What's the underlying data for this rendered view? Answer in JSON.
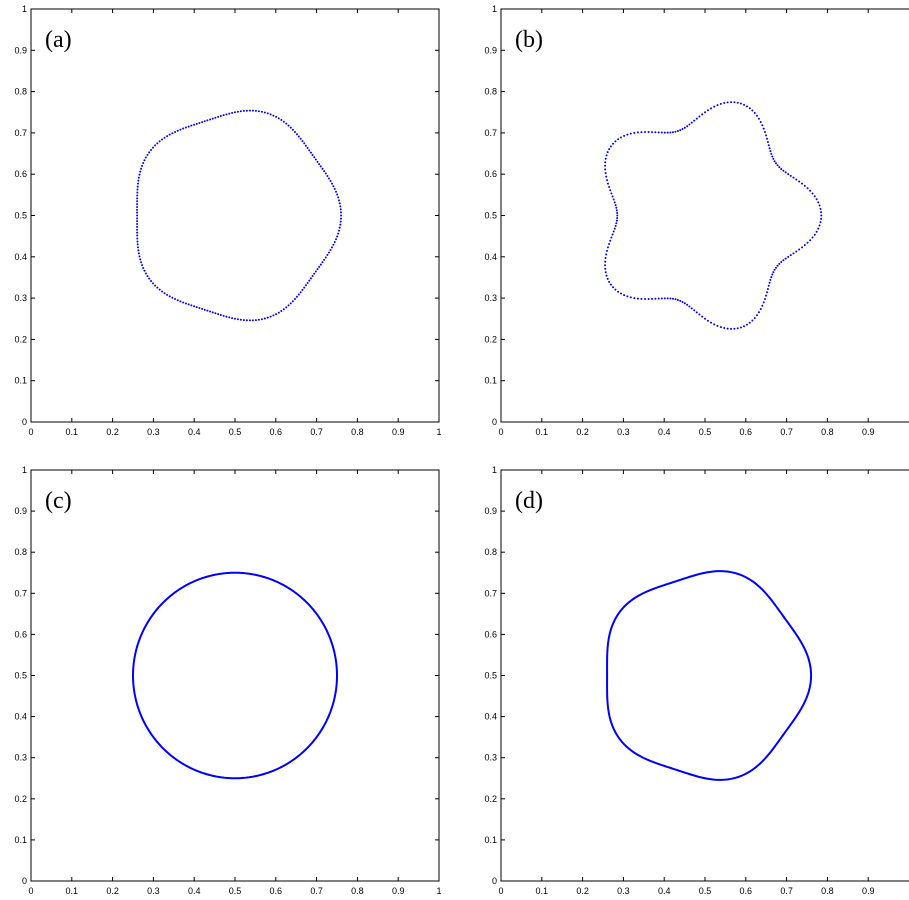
{
  "chart_data": [
    {
      "type": "scatter",
      "panel_label": "(a)",
      "title": "",
      "xlabel": "",
      "ylabel": "",
      "xlim": [
        0,
        1
      ],
      "ylim": [
        0,
        1
      ],
      "x_ticks": [
        "0",
        "0.1",
        "0.2",
        "0.3",
        "0.4",
        "0.5",
        "0.6",
        "0.7",
        "0.8",
        "0.9",
        "1"
      ],
      "y_ticks": [
        "0",
        "0.1",
        "0.2",
        "0.3",
        "0.4",
        "0.5",
        "0.6",
        "0.7",
        "0.8",
        "0.9",
        "1"
      ],
      "marker": "dots",
      "color": "#0000ff",
      "curve": {
        "center": [
          0.5,
          0.5
        ],
        "radius": 0.25,
        "lobes": 5,
        "perturbation": 0.01,
        "phase_deg": 0,
        "point_count": 220
      },
      "grid": false
    },
    {
      "type": "scatter",
      "panel_label": "(b)",
      "title": "",
      "xlabel": "",
      "ylabel": "",
      "xlim": [
        0,
        1
      ],
      "ylim": [
        0,
        1
      ],
      "x_ticks": [
        "0",
        "0.1",
        "0.2",
        "0.3",
        "0.4",
        "0.5",
        "0.6",
        "0.7",
        "0.8",
        "0.9"
      ],
      "y_ticks": [
        "0",
        "0.1",
        "0.2",
        "0.3",
        "0.4",
        "0.5",
        "0.6",
        "0.7",
        "0.8",
        "0.9",
        "1"
      ],
      "marker": "dots",
      "color": "#0000ff",
      "curve": {
        "center": [
          0.5,
          0.5
        ],
        "radius": 0.25,
        "lobes": 5,
        "perturbation": 0.035,
        "phase_deg": 0,
        "point_count": 220
      },
      "grid": false
    },
    {
      "type": "line",
      "panel_label": "(c)",
      "title": "",
      "xlabel": "",
      "ylabel": "",
      "xlim": [
        0,
        1
      ],
      "ylim": [
        0,
        1
      ],
      "x_ticks": [
        "0",
        "0.1",
        "0.2",
        "0.3",
        "0.4",
        "0.5",
        "0.6",
        "0.7",
        "0.8",
        "0.9",
        "1"
      ],
      "y_ticks": [
        "0",
        "0.1",
        "0.2",
        "0.3",
        "0.4",
        "0.5",
        "0.6",
        "0.7",
        "0.8",
        "0.9",
        "1"
      ],
      "marker": "line",
      "color": "#0000ff",
      "curve": {
        "center": [
          0.5,
          0.5
        ],
        "radius": 0.25,
        "lobes": 5,
        "perturbation": 0.0,
        "phase_deg": 0,
        "point_count": 360
      },
      "grid": false
    },
    {
      "type": "line",
      "panel_label": "(d)",
      "title": "",
      "xlabel": "",
      "ylabel": "",
      "xlim": [
        0,
        1
      ],
      "ylim": [
        0,
        1
      ],
      "x_ticks": [
        "0",
        "0.1",
        "0.2",
        "0.3",
        "0.4",
        "0.5",
        "0.6",
        "0.7",
        "0.8",
        "0.9"
      ],
      "y_ticks": [
        "0",
        "0.1",
        "0.2",
        "0.3",
        "0.4",
        "0.5",
        "0.6",
        "0.7",
        "0.8",
        "0.9",
        "1"
      ],
      "marker": "line",
      "color": "#0000ff",
      "curve": {
        "center": [
          0.5,
          0.5
        ],
        "radius": 0.25,
        "lobes": 5,
        "perturbation": 0.01,
        "phase_deg": 0,
        "point_count": 360
      },
      "grid": false
    }
  ]
}
